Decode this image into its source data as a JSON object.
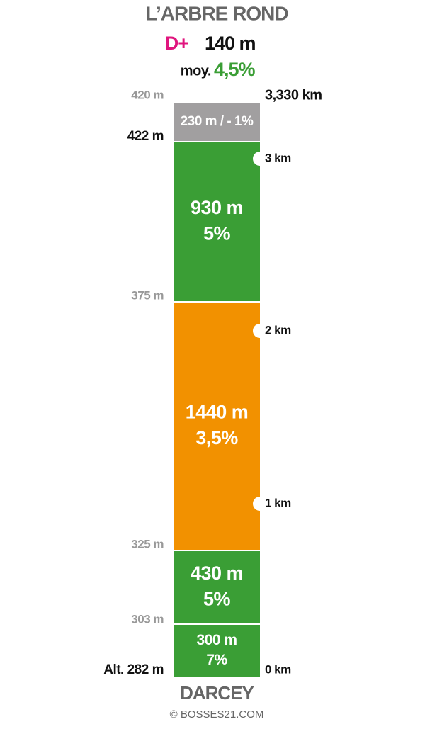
{
  "header": {
    "title": "L’ARBRE ROND",
    "gain_prefix": "D+",
    "gain": "140 m",
    "average_prefix": "moy.",
    "average": "4,5%"
  },
  "segments": [
    {
      "lines": [
        "230 m / - 1%"
      ]
    },
    {
      "lines": [
        "930 m",
        "5%"
      ]
    },
    {
      "lines": [
        "1440 m",
        "3,5%"
      ]
    },
    {
      "lines": [
        "430 m",
        "5%"
      ]
    },
    {
      "lines": [
        "300 m",
        "7%"
      ]
    }
  ],
  "altitudes": [
    "420 m",
    "422 m",
    "375 m",
    "325 m",
    "303 m",
    "Alt. 282 m"
  ],
  "distances": [
    "3,330 km",
    "3 km",
    "2 km",
    "1 km",
    "0 km"
  ],
  "footer": {
    "start": "DARCEY",
    "credit": "© BOSSES21.COM"
  }
}
